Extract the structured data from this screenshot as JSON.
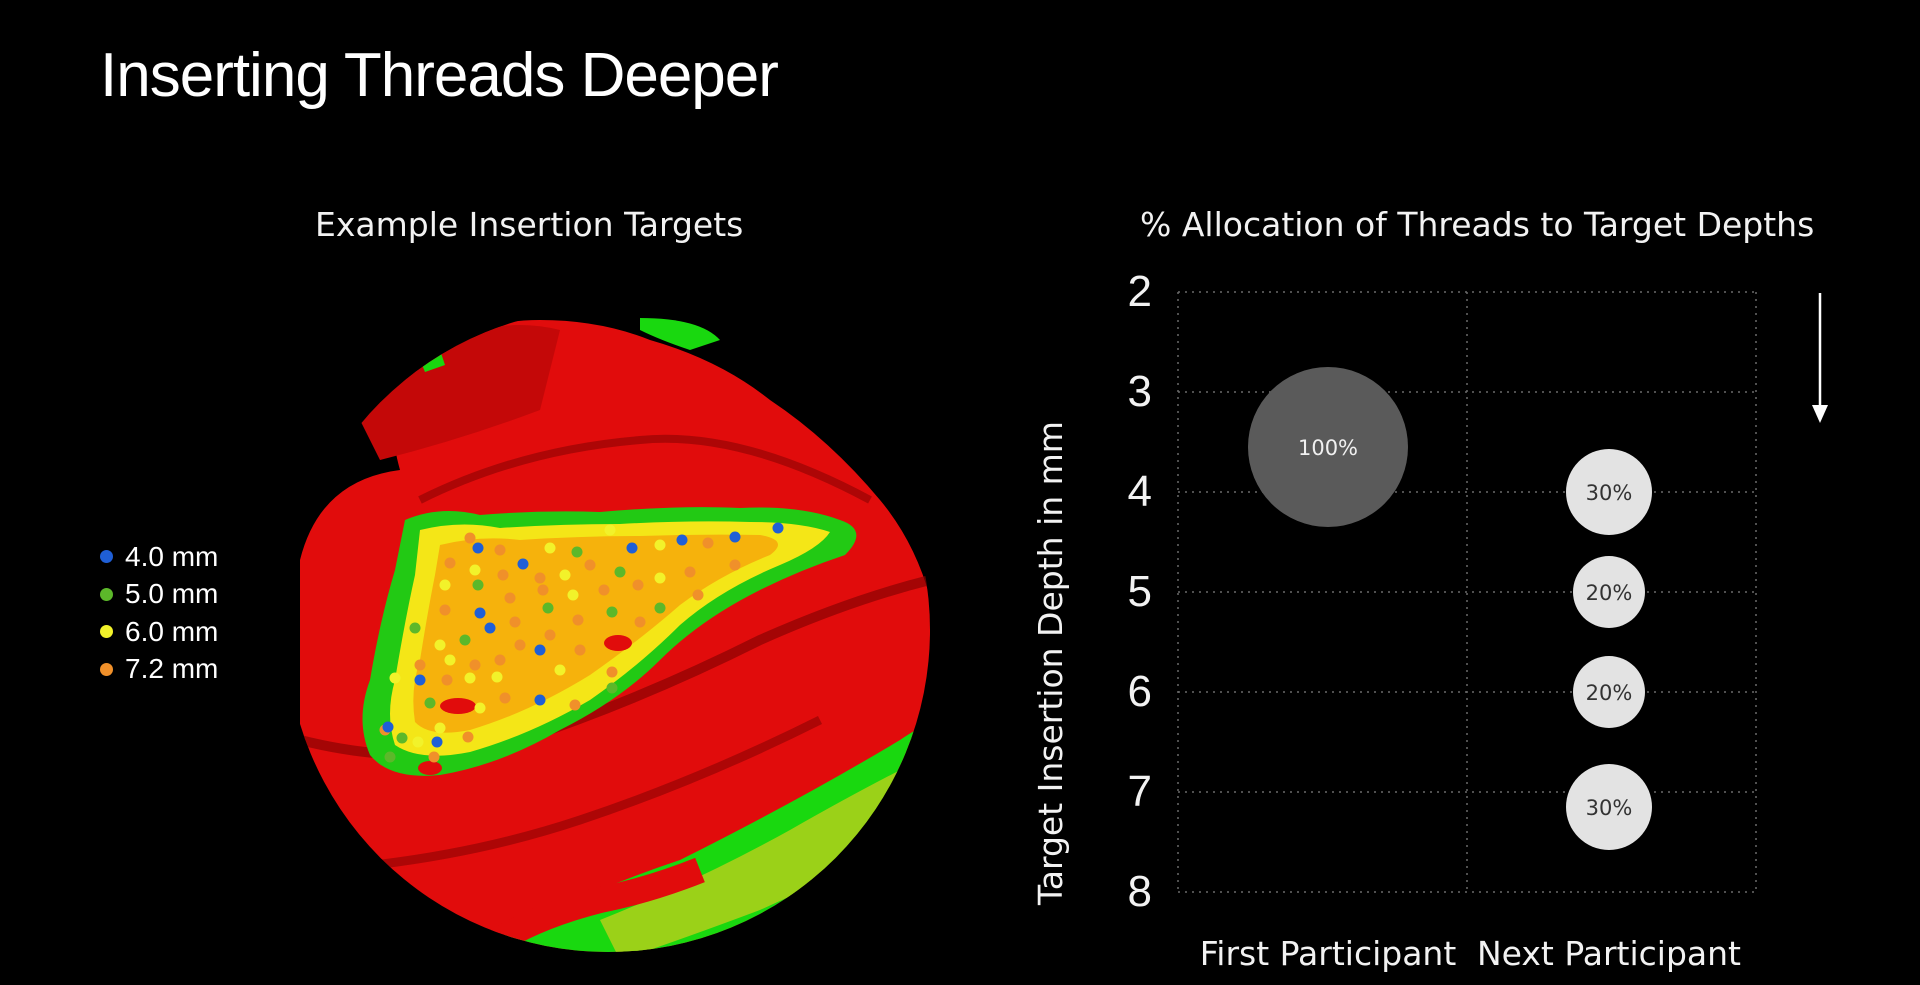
{
  "slide": {
    "title": "Inserting Threads Deeper"
  },
  "left_panel": {
    "title": "Example Insertion Targets",
    "legend": [
      {
        "label": "4.0 mm",
        "color": "#1f5fd6"
      },
      {
        "label": "5.0 mm",
        "color": "#5cb82a"
      },
      {
        "label": "6.0 mm",
        "color": "#f2f22a"
      },
      {
        "label": "7.2 mm",
        "color": "#f0902a"
      }
    ]
  },
  "chart_data": {
    "type": "scatter",
    "title": "% Allocation of Threads to Target Depths",
    "ylabel": "Target Insertion Depth in mm",
    "xlabel": "",
    "categories": [
      "First Participant",
      "Next Participant"
    ],
    "y_ticks": [
      2,
      3,
      4,
      5,
      6,
      7,
      8
    ],
    "ylim": [
      2,
      8
    ],
    "y_inverted": true,
    "grid": true,
    "points": [
      {
        "category": "First Participant",
        "depth": 3.55,
        "percent": 100,
        "label": "100%",
        "color": "#5a5a5a"
      },
      {
        "category": "Next Participant",
        "depth": 4.0,
        "percent": 30,
        "label": "30%",
        "color": "#e3e3e3"
      },
      {
        "category": "Next Participant",
        "depth": 5.0,
        "percent": 20,
        "label": "20%",
        "color": "#e3e3e3"
      },
      {
        "category": "Next Participant",
        "depth": 6.0,
        "percent": 20,
        "label": "20%",
        "color": "#e3e3e3"
      },
      {
        "category": "Next Participant",
        "depth": 7.15,
        "percent": 30,
        "label": "30%",
        "color": "#e3e3e3"
      }
    ]
  }
}
